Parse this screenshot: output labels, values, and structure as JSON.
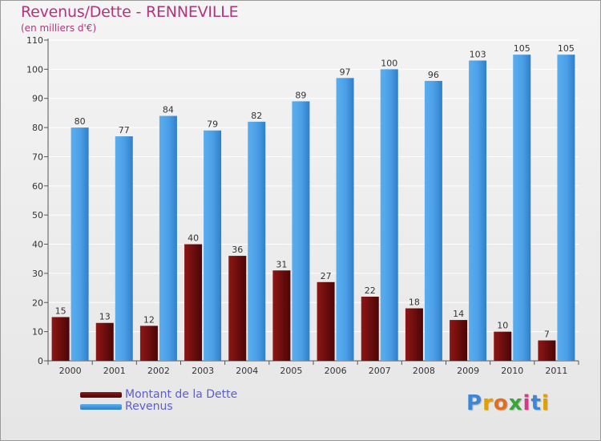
{
  "title": "Revenus/Dette - RENNEVILLE",
  "subtitle": "(en milliers d'€)",
  "brand": {
    "text": "Proxiti",
    "colors": [
      "#3b87d6",
      "#e0a000",
      "#e07020",
      "#3aa63a",
      "#d03b8a",
      "#3b87d6",
      "#e0a000"
    ]
  },
  "chart_data": {
    "type": "bar",
    "categories": [
      "2000",
      "2001",
      "2002",
      "2003",
      "2004",
      "2005",
      "2006",
      "2007",
      "2008",
      "2009",
      "2010",
      "2011"
    ],
    "series": [
      {
        "name": "Montant de la Dette",
        "color": "#7a1010",
        "values": [
          15,
          13,
          12,
          40,
          36,
          31,
          27,
          22,
          18,
          14,
          10,
          7
        ]
      },
      {
        "name": "Revenus",
        "color": "#4a9ee6",
        "values": [
          80,
          77,
          84,
          79,
          82,
          89,
          97,
          100,
          96,
          103,
          105,
          105
        ]
      }
    ],
    "ylim": [
      0,
      110
    ],
    "yticks": [
      0,
      10,
      20,
      30,
      40,
      50,
      60,
      70,
      80,
      90,
      100,
      110
    ],
    "grid": true,
    "legend": "bottom-left"
  }
}
